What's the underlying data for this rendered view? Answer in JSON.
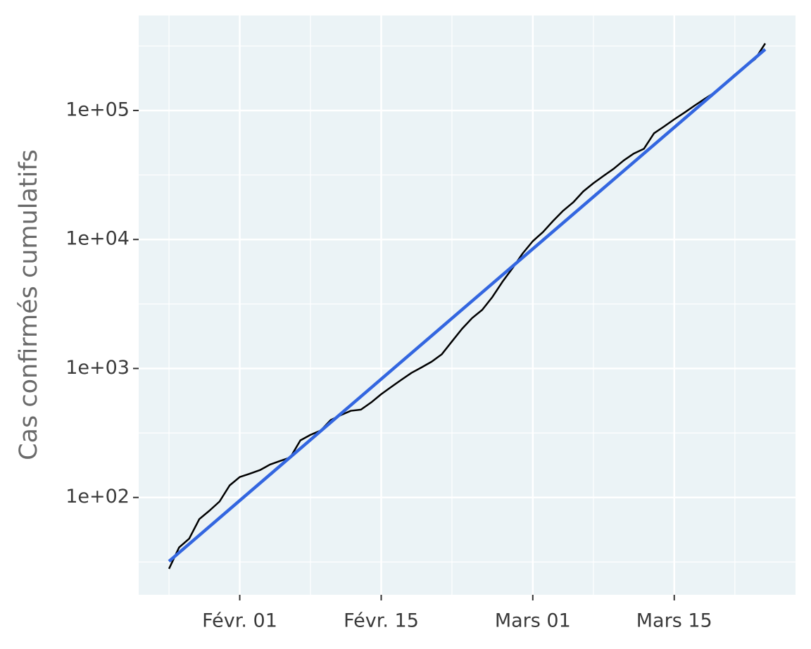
{
  "chart_data": {
    "type": "line",
    "y_label": "Cas confirmés cumulatifs",
    "log_y": true,
    "grid": true,
    "background": "#ebf3f6",
    "xlim": [
      22,
      87
    ],
    "ylim": [
      17.6,
      545000
    ],
    "xticks": [
      {
        "value": 32,
        "label": "Févr. 01"
      },
      {
        "value": 46,
        "label": "Févr. 15"
      },
      {
        "value": 61,
        "label": "Mars 01"
      },
      {
        "value": 75,
        "label": "Mars 15"
      }
    ],
    "yticks": [
      {
        "value": 100,
        "label": "1e+02"
      },
      {
        "value": 1000,
        "label": "1e+03"
      },
      {
        "value": 10000,
        "label": "1e+04"
      },
      {
        "value": 100000,
        "label": "1e+05"
      }
    ],
    "series": [
      {
        "color": "#000000",
        "x": [
          25,
          26,
          27,
          28,
          29,
          30,
          31,
          32,
          33,
          34,
          35,
          36,
          37,
          38,
          39,
          40,
          41,
          42,
          43,
          44,
          45,
          46,
          47,
          48,
          49,
          50,
          51,
          52,
          53,
          54,
          55,
          56,
          57,
          58,
          59,
          60,
          61,
          62,
          63,
          64,
          65,
          66,
          67,
          68,
          69,
          70,
          71,
          72,
          73,
          74,
          75,
          76,
          77,
          78,
          79,
          80,
          81,
          82,
          83,
          84
        ],
        "values": [
          28,
          41,
          48,
          68,
          79,
          93,
          124,
          144,
          153,
          163,
          180,
          192,
          204,
          277,
          306,
          330,
          398,
          435,
          470,
          480,
          545,
          632,
          720,
          818,
          925,
          1020,
          1130,
          1290,
          1620,
          2030,
          2460,
          2850,
          3580,
          4700,
          6000,
          7800,
          9700,
          11400,
          13900,
          16700,
          19400,
          23600,
          27300,
          31100,
          35300,
          41000,
          46400,
          50500,
          66600,
          75200,
          85400,
          96200,
          109000,
          123000,
          138000,
          162000,
          190000,
          218000,
          250000,
          331000
        ]
      },
      {
        "color": "#3366e0",
        "x": [
          25,
          84
        ],
        "values": [
          32,
          298000
        ]
      }
    ]
  }
}
